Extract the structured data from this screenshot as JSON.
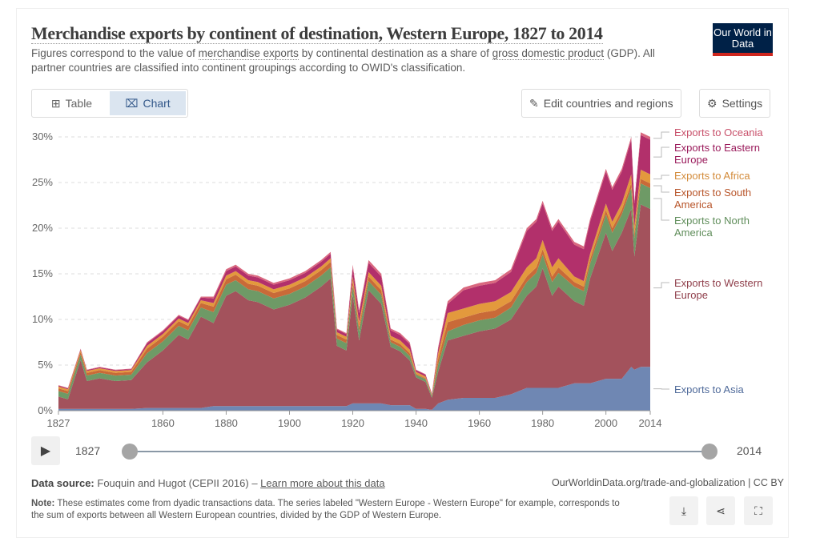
{
  "header": {
    "title": "Merchandise exports by continent of destination, Western Europe, 1827 to 2014",
    "subtitle_parts": [
      "Figures correspond to the value of ",
      "merchandise exports",
      " by continental destination as a share of ",
      "gross domestic product",
      " (GDP). All partner countries are classified into continent groupings according to OWID's classification."
    ],
    "logo": "Our World in Data"
  },
  "toolbar": {
    "table_label": "Table",
    "chart_label": "Chart",
    "edit_label": "Edit countries and regions",
    "settings_label": "Settings"
  },
  "timeline": {
    "start": "1827",
    "end": "2014",
    "start_fraction": 0,
    "end_fraction": 1
  },
  "footer": {
    "source_label": "Data source:",
    "source": "Fouquin and Hugot (CEPII 2016) – ",
    "learn_more": "Learn more about this data",
    "site": "OurWorldinData.org/trade-and-globalization | CC BY",
    "note_label": "Note:",
    "note": "These estimates come from dyadic transactions data. The series labeled \"Western Europe - Western Europe\" for example, corresponds to the sum of exports between all Western European countries, divided by the GDP of Western Europe."
  },
  "chart_data": {
    "type": "area",
    "stacked": true,
    "grid": true,
    "ylim": [
      0,
      31
    ],
    "xlim": [
      1827,
      2014
    ],
    "yticks": [
      "0%",
      "5%",
      "10%",
      "15%",
      "20%",
      "25%",
      "30%"
    ],
    "yticks_values": [
      0,
      5,
      10,
      15,
      20,
      25,
      30
    ],
    "xticks": [
      1827,
      1860,
      1880,
      1900,
      1920,
      1940,
      1960,
      1980,
      2000,
      2014
    ],
    "x": [
      1827,
      1830,
      1834,
      1836,
      1840,
      1845,
      1850,
      1855,
      1860,
      1865,
      1868,
      1872,
      1876,
      1880,
      1883,
      1887,
      1890,
      1895,
      1900,
      1905,
      1910,
      1913,
      1915,
      1918,
      1920,
      1922,
      1925,
      1929,
      1932,
      1935,
      1938,
      1940,
      1943,
      1945,
      1947,
      1950,
      1955,
      1960,
      1965,
      1970,
      1975,
      1978,
      1980,
      1983,
      1985,
      1990,
      1993,
      1995,
      2000,
      2002,
      2005,
      2008,
      2009,
      2011,
      2014
    ],
    "series": [
      {
        "name": "Exports to Asia",
        "color": "#6f87b3",
        "label_color": "#4f6a9a",
        "values": [
          0.2,
          0.2,
          0.2,
          0.2,
          0.2,
          0.2,
          0.2,
          0.3,
          0.3,
          0.3,
          0.3,
          0.3,
          0.5,
          0.5,
          0.5,
          0.5,
          0.5,
          0.5,
          0.5,
          0.5,
          0.5,
          0.5,
          0.5,
          0.5,
          0.8,
          0.8,
          0.8,
          0.8,
          0.6,
          0.6,
          0.6,
          0.2,
          0.2,
          0.1,
          0.8,
          1.2,
          1.4,
          1.4,
          1.4,
          1.8,
          2.5,
          2.5,
          2.5,
          2.5,
          2.5,
          3.0,
          3.0,
          3.0,
          3.5,
          3.5,
          3.5,
          4.8,
          4.5,
          4.8,
          4.8
        ]
      },
      {
        "name": "Exports to Western Europe",
        "color": "#a3525c",
        "label_color": "#8f3e4a",
        "values": [
          1.35,
          1.05,
          5.35,
          3.05,
          3.35,
          3.05,
          3.15,
          5.0,
          6.3,
          8.0,
          7.5,
          10.0,
          9.1,
          12.1,
          12.6,
          11.6,
          11.4,
          10.6,
          11.1,
          11.9,
          13.1,
          14.0,
          6.6,
          6.1,
          11.9,
          6.9,
          12.4,
          10.9,
          6.4,
          5.9,
          4.9,
          3.45,
          2.95,
          1.3,
          3.5,
          6.5,
          6.8,
          7.3,
          7.6,
          8.2,
          10.1,
          11.1,
          13.1,
          10.1,
          11.1,
          9.0,
          8.5,
          11.5,
          16.0,
          14.0,
          16.0,
          17.3,
          12.4,
          17.8,
          17.3
        ]
      },
      {
        "name": "Exports to North America",
        "color": "#6e9a66",
        "label_color": "#5f8d5a",
        "values": [
          0.6,
          0.6,
          0.6,
          0.6,
          0.6,
          0.6,
          0.6,
          1.0,
          1.0,
          1.0,
          1.0,
          1.0,
          1.2,
          1.2,
          1.2,
          1.2,
          1.2,
          1.2,
          1.2,
          1.2,
          1.2,
          1.2,
          0.8,
          0.8,
          1.0,
          1.0,
          1.0,
          1.0,
          0.5,
          0.5,
          0.5,
          0.3,
          0.3,
          0.2,
          0.8,
          1.0,
          1.2,
          1.2,
          1.2,
          1.3,
          1.5,
          1.5,
          1.5,
          1.5,
          1.5,
          1.6,
          1.6,
          1.6,
          2.0,
          2.0,
          2.0,
          2.3,
          2.0,
          2.3,
          2.3
        ]
      },
      {
        "name": "Exports to South America",
        "color": "#c96a38",
        "label_color": "#b8552a",
        "values": [
          0.3,
          0.3,
          0.3,
          0.3,
          0.3,
          0.3,
          0.3,
          0.5,
          0.5,
          0.5,
          0.5,
          0.5,
          0.6,
          0.6,
          0.6,
          0.6,
          0.6,
          0.6,
          0.6,
          0.6,
          0.6,
          0.6,
          0.4,
          0.4,
          0.5,
          0.5,
          0.5,
          0.5,
          0.3,
          0.3,
          0.3,
          0.1,
          0.1,
          0.05,
          0.6,
          1.0,
          0.8,
          0.8,
          0.8,
          0.7,
          0.6,
          0.6,
          0.6,
          0.6,
          0.6,
          0.5,
          0.5,
          0.5,
          0.5,
          0.5,
          0.5,
          0.5,
          0.5,
          0.5,
          0.5
        ]
      },
      {
        "name": "Exports to Africa",
        "color": "#e3993d",
        "label_color": "#d38b3a",
        "values": [
          0.2,
          0.2,
          0.2,
          0.2,
          0.2,
          0.2,
          0.2,
          0.3,
          0.3,
          0.3,
          0.3,
          0.3,
          0.4,
          0.4,
          0.4,
          0.4,
          0.4,
          0.4,
          0.4,
          0.4,
          0.4,
          0.4,
          0.3,
          0.3,
          0.5,
          0.5,
          0.5,
          0.5,
          0.4,
          0.4,
          0.4,
          0.2,
          0.2,
          0.1,
          0.6,
          1.0,
          1.0,
          1.0,
          1.0,
          1.0,
          1.0,
          1.0,
          1.0,
          1.0,
          1.0,
          0.6,
          0.6,
          0.6,
          0.7,
          0.7,
          0.7,
          1.0,
          0.8,
          1.0,
          1.0
        ]
      },
      {
        "name": "Exports to Eastern Europe",
        "color": "#b2306b",
        "label_color": "#9a1a5b",
        "values": [
          0.1,
          0.1,
          0.1,
          0.1,
          0.1,
          0.1,
          0.1,
          0.3,
          0.3,
          0.3,
          0.3,
          0.3,
          0.5,
          0.5,
          0.5,
          0.5,
          0.5,
          0.5,
          0.5,
          0.5,
          0.5,
          0.5,
          0.3,
          0.3,
          1.0,
          1.0,
          1.0,
          1.0,
          0.6,
          0.6,
          0.6,
          0.2,
          0.2,
          0.1,
          0.5,
          1.0,
          2.0,
          2.0,
          2.0,
          2.2,
          4.0,
          4.0,
          4.0,
          4.0,
          4.0,
          3.5,
          3.5,
          3.5,
          3.5,
          3.5,
          3.5,
          3.8,
          2.5,
          3.8,
          3.8
        ]
      },
      {
        "name": "Exports to Oceania",
        "color": "#d9687f",
        "label_color": "#c8506a",
        "values": [
          0.05,
          0.05,
          0.05,
          0.05,
          0.05,
          0.05,
          0.05,
          0.1,
          0.1,
          0.1,
          0.1,
          0.1,
          0.2,
          0.2,
          0.2,
          0.2,
          0.2,
          0.2,
          0.2,
          0.2,
          0.2,
          0.2,
          0.1,
          0.1,
          0.3,
          0.3,
          0.3,
          0.3,
          0.2,
          0.2,
          0.2,
          0.05,
          0.05,
          0.05,
          0.2,
          0.3,
          0.3,
          0.3,
          0.3,
          0.3,
          0.3,
          0.3,
          0.3,
          0.3,
          0.3,
          0.3,
          0.3,
          0.3,
          0.3,
          0.3,
          0.3,
          0.3,
          0.3,
          0.3,
          0.3
        ]
      }
    ]
  }
}
